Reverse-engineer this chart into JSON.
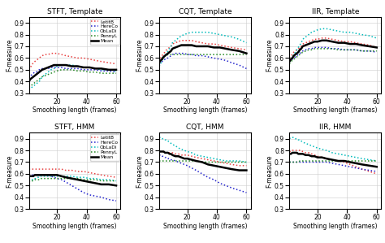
{
  "titles": [
    [
      "STFT, Template",
      "CQT, Template",
      "IIR, Template"
    ],
    [
      "STFT, HMM",
      "CQT, HMM",
      "IIR, HMM"
    ]
  ],
  "xlabel": "Smoothing length (frames)",
  "ylabel": "F-measure",
  "ylim": [
    0.3,
    0.95
  ],
  "yticks": [
    0.3,
    0.4,
    0.5,
    0.6,
    0.7,
    0.8,
    0.9
  ],
  "xticks": [
    20,
    40,
    60
  ],
  "x": [
    1,
    2,
    3,
    4,
    5,
    6,
    7,
    8,
    9,
    10,
    12,
    14,
    16,
    18,
    20,
    23,
    26,
    30,
    34,
    38,
    42,
    46,
    50,
    55,
    60
  ],
  "colors": {
    "LetitB": "#e84040",
    "HereCo": "#2222cc",
    "ObLaDi": "#00bbbb",
    "PennyL": "#228822",
    "Mean": "#000000"
  },
  "linestyles": {
    "LetitB": "dotted",
    "HereCo": "dotted",
    "ObLaDi": "dotted",
    "PennyL": "dotted",
    "Mean": "solid"
  },
  "linewidths": {
    "LetitB": 1.1,
    "HereCo": 1.1,
    "ObLaDi": 1.1,
    "PennyL": 1.1,
    "Mean": 1.8
  },
  "data": {
    "STFT_Template": {
      "LetitB": [
        0.5,
        0.52,
        0.54,
        0.56,
        0.57,
        0.58,
        0.59,
        0.6,
        0.61,
        0.62,
        0.63,
        0.63,
        0.64,
        0.64,
        0.64,
        0.63,
        0.62,
        0.61,
        0.6,
        0.6,
        0.59,
        0.58,
        0.57,
        0.56,
        0.55
      ],
      "HereCo": [
        0.43,
        0.44,
        0.46,
        0.47,
        0.48,
        0.48,
        0.49,
        0.5,
        0.5,
        0.51,
        0.51,
        0.51,
        0.52,
        0.52,
        0.52,
        0.52,
        0.51,
        0.51,
        0.51,
        0.5,
        0.5,
        0.5,
        0.49,
        0.49,
        0.48
      ],
      "ObLaDi": [
        0.33,
        0.34,
        0.35,
        0.36,
        0.37,
        0.38,
        0.39,
        0.4,
        0.42,
        0.44,
        0.46,
        0.48,
        0.5,
        0.51,
        0.53,
        0.54,
        0.54,
        0.54,
        0.53,
        0.52,
        0.52,
        0.51,
        0.5,
        0.5,
        0.49
      ],
      "PennyL": [
        0.35,
        0.36,
        0.37,
        0.38,
        0.39,
        0.4,
        0.41,
        0.42,
        0.43,
        0.44,
        0.45,
        0.46,
        0.47,
        0.48,
        0.49,
        0.5,
        0.5,
        0.5,
        0.49,
        0.49,
        0.48,
        0.48,
        0.47,
        0.47,
        0.47
      ],
      "Mean": [
        0.4,
        0.42,
        0.43,
        0.44,
        0.45,
        0.46,
        0.47,
        0.48,
        0.49,
        0.5,
        0.51,
        0.52,
        0.53,
        0.54,
        0.54,
        0.54,
        0.54,
        0.53,
        0.53,
        0.52,
        0.52,
        0.51,
        0.51,
        0.5,
        0.5
      ]
    },
    "CQT_Template": {
      "LetitB": [
        0.57,
        0.6,
        0.62,
        0.64,
        0.65,
        0.67,
        0.68,
        0.69,
        0.7,
        0.72,
        0.73,
        0.74,
        0.75,
        0.75,
        0.75,
        0.75,
        0.74,
        0.73,
        0.72,
        0.72,
        0.71,
        0.7,
        0.69,
        0.68,
        0.67
      ],
      "HereCo": [
        0.55,
        0.56,
        0.57,
        0.58,
        0.59,
        0.6,
        0.6,
        0.61,
        0.62,
        0.63,
        0.64,
        0.64,
        0.64,
        0.64,
        0.63,
        0.63,
        0.62,
        0.62,
        0.61,
        0.6,
        0.59,
        0.58,
        0.56,
        0.54,
        0.51
      ],
      "ObLaDi": [
        0.53,
        0.55,
        0.58,
        0.6,
        0.62,
        0.64,
        0.66,
        0.68,
        0.7,
        0.73,
        0.75,
        0.77,
        0.79,
        0.8,
        0.81,
        0.82,
        0.82,
        0.82,
        0.82,
        0.81,
        0.8,
        0.79,
        0.78,
        0.76,
        0.73
      ],
      "PennyL": [
        0.58,
        0.59,
        0.6,
        0.61,
        0.62,
        0.62,
        0.63,
        0.63,
        0.63,
        0.63,
        0.63,
        0.63,
        0.63,
        0.63,
        0.63,
        0.63,
        0.63,
        0.63,
        0.63,
        0.63,
        0.63,
        0.63,
        0.63,
        0.63,
        0.63
      ],
      "Mean": [
        0.56,
        0.58,
        0.59,
        0.61,
        0.62,
        0.63,
        0.64,
        0.65,
        0.66,
        0.68,
        0.69,
        0.7,
        0.71,
        0.71,
        0.71,
        0.71,
        0.7,
        0.7,
        0.7,
        0.69,
        0.69,
        0.68,
        0.67,
        0.66,
        0.64
      ]
    },
    "IIR_Template": {
      "LetitB": [
        0.6,
        0.62,
        0.63,
        0.65,
        0.66,
        0.67,
        0.68,
        0.69,
        0.7,
        0.72,
        0.73,
        0.74,
        0.75,
        0.76,
        0.76,
        0.77,
        0.77,
        0.76,
        0.75,
        0.74,
        0.74,
        0.73,
        0.72,
        0.71,
        0.69
      ],
      "HereCo": [
        0.57,
        0.58,
        0.59,
        0.6,
        0.61,
        0.62,
        0.63,
        0.64,
        0.65,
        0.66,
        0.67,
        0.68,
        0.68,
        0.69,
        0.69,
        0.69,
        0.69,
        0.68,
        0.68,
        0.67,
        0.67,
        0.67,
        0.66,
        0.66,
        0.65
      ],
      "ObLaDi": [
        0.57,
        0.59,
        0.61,
        0.63,
        0.65,
        0.67,
        0.69,
        0.71,
        0.73,
        0.76,
        0.78,
        0.8,
        0.82,
        0.83,
        0.84,
        0.85,
        0.85,
        0.84,
        0.83,
        0.82,
        0.82,
        0.81,
        0.8,
        0.79,
        0.77
      ],
      "PennyL": [
        0.55,
        0.57,
        0.58,
        0.59,
        0.6,
        0.61,
        0.62,
        0.63,
        0.64,
        0.65,
        0.66,
        0.67,
        0.67,
        0.68,
        0.68,
        0.68,
        0.68,
        0.68,
        0.67,
        0.67,
        0.67,
        0.67,
        0.66,
        0.66,
        0.66
      ],
      "Mean": [
        0.57,
        0.59,
        0.6,
        0.62,
        0.63,
        0.64,
        0.65,
        0.67,
        0.68,
        0.7,
        0.71,
        0.72,
        0.73,
        0.74,
        0.74,
        0.75,
        0.75,
        0.74,
        0.73,
        0.73,
        0.72,
        0.72,
        0.71,
        0.7,
        0.69
      ]
    },
    "STFT_HMM": {
      "LetitB": [
        0.64,
        0.64,
        0.64,
        0.64,
        0.64,
        0.64,
        0.64,
        0.64,
        0.64,
        0.64,
        0.64,
        0.64,
        0.64,
        0.64,
        0.64,
        0.64,
        0.63,
        0.63,
        0.62,
        0.62,
        0.61,
        0.6,
        0.59,
        0.58,
        0.57
      ],
      "HereCo": [
        0.59,
        0.59,
        0.59,
        0.59,
        0.59,
        0.59,
        0.59,
        0.59,
        0.59,
        0.59,
        0.59,
        0.59,
        0.58,
        0.57,
        0.56,
        0.55,
        0.53,
        0.5,
        0.47,
        0.44,
        0.42,
        0.41,
        0.4,
        0.38,
        0.37
      ],
      "ObLaDi": [
        0.54,
        0.55,
        0.55,
        0.55,
        0.56,
        0.56,
        0.57,
        0.57,
        0.58,
        0.58,
        0.58,
        0.58,
        0.58,
        0.58,
        0.58,
        0.58,
        0.58,
        0.58,
        0.57,
        0.57,
        0.56,
        0.56,
        0.55,
        0.55,
        0.54
      ],
      "PennyL": [
        0.53,
        0.54,
        0.54,
        0.54,
        0.55,
        0.55,
        0.55,
        0.55,
        0.56,
        0.56,
        0.56,
        0.56,
        0.56,
        0.56,
        0.56,
        0.56,
        0.56,
        0.56,
        0.56,
        0.55,
        0.55,
        0.55,
        0.54,
        0.54,
        0.54
      ],
      "Mean": [
        0.58,
        0.58,
        0.58,
        0.58,
        0.59,
        0.59,
        0.59,
        0.59,
        0.59,
        0.59,
        0.59,
        0.59,
        0.59,
        0.59,
        0.59,
        0.58,
        0.57,
        0.56,
        0.55,
        0.54,
        0.53,
        0.52,
        0.51,
        0.51,
        0.5
      ]
    },
    "CQT_HMM": {
      "LetitB": [
        0.79,
        0.79,
        0.79,
        0.79,
        0.78,
        0.78,
        0.78,
        0.78,
        0.78,
        0.78,
        0.77,
        0.77,
        0.76,
        0.76,
        0.76,
        0.75,
        0.74,
        0.73,
        0.72,
        0.71,
        0.7,
        0.69,
        0.68,
        0.67,
        0.67
      ],
      "HereCo": [
        0.76,
        0.76,
        0.75,
        0.75,
        0.74,
        0.74,
        0.73,
        0.73,
        0.72,
        0.72,
        0.71,
        0.7,
        0.69,
        0.68,
        0.67,
        0.65,
        0.63,
        0.6,
        0.57,
        0.55,
        0.52,
        0.5,
        0.48,
        0.46,
        0.44
      ],
      "ObLaDi": [
        0.91,
        0.91,
        0.9,
        0.9,
        0.89,
        0.89,
        0.88,
        0.87,
        0.86,
        0.85,
        0.84,
        0.82,
        0.81,
        0.8,
        0.79,
        0.78,
        0.76,
        0.75,
        0.74,
        0.73,
        0.72,
        0.71,
        0.71,
        0.71,
        0.7
      ],
      "PennyL": [
        0.71,
        0.71,
        0.71,
        0.71,
        0.71,
        0.71,
        0.71,
        0.71,
        0.71,
        0.71,
        0.71,
        0.71,
        0.71,
        0.71,
        0.71,
        0.71,
        0.71,
        0.7,
        0.7,
        0.7,
        0.7,
        0.7,
        0.7,
        0.7,
        0.7
      ],
      "Mean": [
        0.79,
        0.79,
        0.79,
        0.79,
        0.78,
        0.78,
        0.78,
        0.77,
        0.77,
        0.76,
        0.75,
        0.75,
        0.74,
        0.73,
        0.73,
        0.72,
        0.71,
        0.7,
        0.68,
        0.67,
        0.66,
        0.65,
        0.64,
        0.63,
        0.63
      ]
    },
    "IIR_HMM": {
      "LetitB": [
        0.79,
        0.79,
        0.8,
        0.8,
        0.8,
        0.8,
        0.8,
        0.8,
        0.8,
        0.79,
        0.78,
        0.78,
        0.77,
        0.76,
        0.75,
        0.74,
        0.73,
        0.72,
        0.71,
        0.7,
        0.68,
        0.66,
        0.64,
        0.62,
        0.6
      ],
      "HereCo": [
        0.7,
        0.7,
        0.7,
        0.7,
        0.7,
        0.7,
        0.7,
        0.7,
        0.7,
        0.7,
        0.7,
        0.7,
        0.7,
        0.7,
        0.7,
        0.7,
        0.7,
        0.69,
        0.68,
        0.67,
        0.66,
        0.65,
        0.64,
        0.63,
        0.62
      ],
      "ObLaDi": [
        0.9,
        0.91,
        0.91,
        0.91,
        0.9,
        0.9,
        0.89,
        0.89,
        0.88,
        0.87,
        0.86,
        0.85,
        0.84,
        0.83,
        0.82,
        0.81,
        0.8,
        0.78,
        0.77,
        0.76,
        0.75,
        0.74,
        0.73,
        0.72,
        0.71
      ],
      "PennyL": [
        0.7,
        0.7,
        0.7,
        0.7,
        0.7,
        0.7,
        0.7,
        0.71,
        0.71,
        0.71,
        0.71,
        0.71,
        0.71,
        0.71,
        0.71,
        0.71,
        0.71,
        0.71,
        0.71,
        0.71,
        0.71,
        0.71,
        0.71,
        0.71,
        0.71
      ],
      "Mean": [
        0.77,
        0.77,
        0.78,
        0.78,
        0.78,
        0.78,
        0.77,
        0.77,
        0.77,
        0.77,
        0.76,
        0.76,
        0.75,
        0.75,
        0.74,
        0.74,
        0.73,
        0.72,
        0.71,
        0.71,
        0.7,
        0.69,
        0.68,
        0.67,
        0.66
      ]
    }
  }
}
